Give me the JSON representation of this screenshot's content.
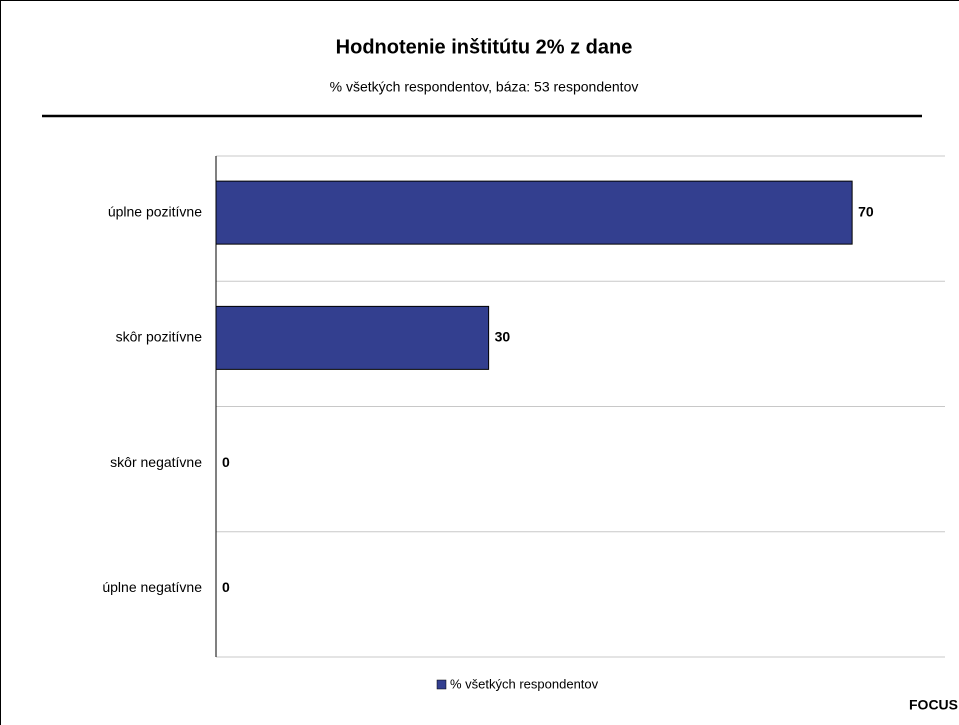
{
  "chart_data": {
    "type": "bar",
    "orientation": "horizontal",
    "title": "Hodnotenie inštitútu 2% z dane",
    "subtitle": "% všetkých respondentov, báza: 53 respondentov",
    "categories": [
      "úplne pozitívne",
      "skôr pozitívne",
      "skôr negatívne",
      "úplne negatívne"
    ],
    "series": [
      {
        "name": "% všetkých respondentov",
        "color": "#333f8f",
        "values": [
          70,
          30,
          0,
          0
        ]
      }
    ],
    "xlim": [
      0,
      80
    ],
    "legend": "bottom",
    "source": "FOCUS"
  }
}
